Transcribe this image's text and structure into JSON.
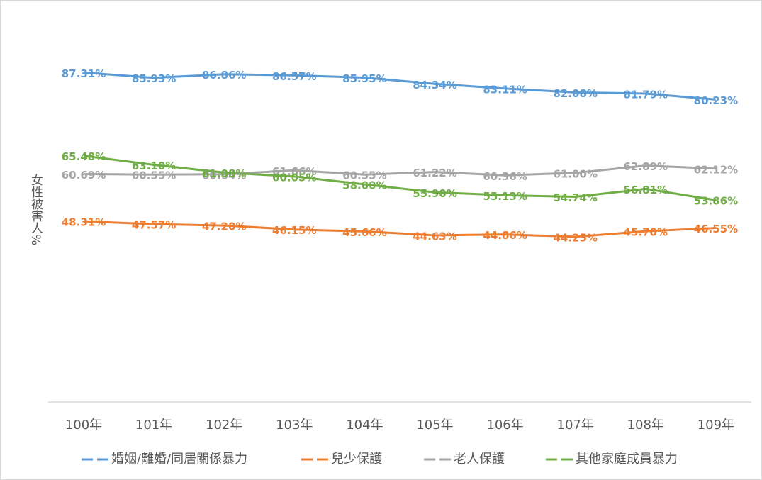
{
  "chart_data": {
    "type": "line",
    "y_label": "女性被害人%",
    "categories": [
      "100年",
      "101年",
      "102年",
      "103年",
      "104年",
      "105年",
      "106年",
      "107年",
      "108年",
      "109年"
    ],
    "ylim": [
      0,
      100
    ],
    "grid": false,
    "legend": "bottom",
    "series": [
      {
        "name": "婚姻/離婚/同居關係暴力",
        "color": "#5b9bd5",
        "values": [
          87.31,
          85.93,
          86.86,
          86.57,
          85.95,
          84.34,
          83.11,
          82.08,
          81.79,
          80.23
        ],
        "value_labels": [
          "87.31%",
          "85.93%",
          "86.86%",
          "86.57%",
          "85.95%",
          "84.34%",
          "83.11%",
          "82.08%",
          "81.79%",
          "80.23%"
        ]
      },
      {
        "name": "兒少保護",
        "color": "#ed7d31",
        "values": [
          48.31,
          47.57,
          47.2,
          46.15,
          45.66,
          44.63,
          44.86,
          44.25,
          45.7,
          46.55
        ],
        "value_labels": [
          "48.31%",
          "47.57%",
          "47.20%",
          "46.15%",
          "45.66%",
          "44.63%",
          "44.86%",
          "44.25%",
          "45.70%",
          "46.55%"
        ]
      },
      {
        "name": "老人保護",
        "color": "#a5a5a5",
        "values": [
          60.69,
          60.55,
          60.64,
          61.66,
          60.55,
          61.22,
          60.36,
          61.0,
          62.89,
          62.12
        ],
        "value_labels": [
          "60.69%",
          "60.55%",
          "60.64%",
          "61.66%",
          "60.55%",
          "61.22%",
          "60.36%",
          "61.00%",
          "62.89%",
          "62.12%"
        ]
      },
      {
        "name": "其他家庭成員暴力",
        "color": "#70ad47",
        "values": [
          65.48,
          63.1,
          61.08,
          60.05,
          58.0,
          55.9,
          55.13,
          54.74,
          56.81,
          53.86
        ],
        "value_labels": [
          "65.48%",
          "63.10%",
          "61.08%",
          "60.05%",
          "58.00%",
          "55.90%",
          "55.13%",
          "54.74%",
          "56.81%",
          "53.86%"
        ]
      }
    ]
  }
}
